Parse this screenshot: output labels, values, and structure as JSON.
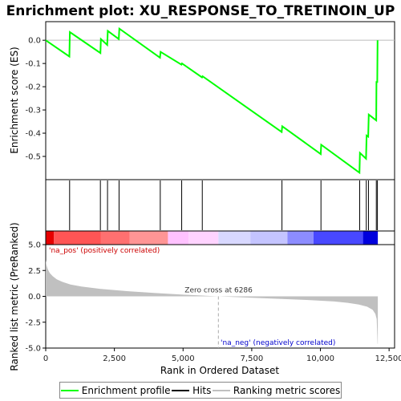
{
  "chart_data": {
    "type": "line",
    "title": "Enrichment plot: XU_RESPONSE_TO_TRETINOIN_UP",
    "es_panel": {
      "ylabel": "Enrichment score (ES)",
      "ylim": [
        -0.6,
        0.08
      ],
      "yticks": [
        0.0,
        -0.1,
        -0.2,
        -0.3,
        -0.4,
        -0.5
      ],
      "ytick_labels": [
        "0.0",
        "-0.1",
        "-0.2",
        "-0.3",
        "-0.4",
        "-0.5"
      ],
      "grid": false,
      "series": [
        {
          "name": "Enrichment profile",
          "color": "#00ff00",
          "x": [
            0,
            860,
            880,
            1990,
            2010,
            2240,
            2260,
            2660,
            2680,
            4160,
            4180,
            4940,
            4960,
            5690,
            5710,
            8590,
            8610,
            10010,
            10030,
            11420,
            11440,
            11660,
            11680,
            11740,
            11760,
            12030,
            12040,
            12070,
            12080
          ],
          "y": [
            0.0,
            -0.07,
            0.035,
            -0.055,
            0.005,
            -0.02,
            0.04,
            0.005,
            0.05,
            -0.075,
            -0.05,
            -0.105,
            -0.1,
            -0.16,
            -0.155,
            -0.395,
            -0.37,
            -0.49,
            -0.45,
            -0.57,
            -0.485,
            -0.51,
            -0.41,
            -0.415,
            -0.32,
            -0.345,
            -0.18,
            -0.18,
            0.0
          ]
        }
      ]
    },
    "hits": {
      "name": "Hits",
      "color": "#000000",
      "positions": [
        870,
        1990,
        2250,
        2670,
        4170,
        4950,
        5700,
        8600,
        10020,
        11430,
        11670,
        11750,
        12035,
        12075
      ]
    },
    "color_bar": {
      "positive_color": "#ff0000",
      "negative_color": "#0000ff",
      "boundaries": [
        0,
        300,
        2000,
        3050,
        4450,
        5200,
        6286,
        7450,
        8800,
        9750,
        11550,
        12090
      ],
      "colors": [
        "#e60000",
        "#ff5555",
        "#ff7070",
        "#ff9595",
        "#ffc2ff",
        "#ffd3ff",
        "#d8d8ff",
        "#c4c4ff",
        "#8c8cff",
        "#4848ff",
        "#0000dd"
      ]
    },
    "metric_panel": {
      "name": "Ranking metric scores",
      "color": "#c0c0c0",
      "ylabel": "Ranked list metric (PreRanked)",
      "ylim": [
        -5,
        5
      ],
      "yticks": [
        5.0,
        2.5,
        0.0,
        -2.5,
        -5.0
      ],
      "ytick_labels": [
        "5.0",
        "2.5",
        "0.0",
        "-2.5",
        "-5.0"
      ],
      "x": [
        0,
        30,
        80,
        150,
        250,
        400,
        600,
        900,
        1300,
        2000,
        3000,
        4000,
        5000,
        6286,
        7500,
        8500,
        9500,
        10500,
        11000,
        11400,
        11700,
        11900,
        12000,
        12050,
        12080,
        12090
      ],
      "y": [
        3.5,
        3.0,
        2.6,
        2.25,
        1.95,
        1.65,
        1.4,
        1.15,
        0.95,
        0.72,
        0.5,
        0.32,
        0.16,
        0.0,
        -0.13,
        -0.24,
        -0.35,
        -0.5,
        -0.63,
        -0.8,
        -1.0,
        -1.3,
        -1.7,
        -2.2,
        -4.6,
        -4.6
      ]
    },
    "xlabel": "Rank in Ordered Dataset",
    "xlim": [
      0,
      12700
    ],
    "xticks": [
      0,
      2500,
      5000,
      7500,
      10000,
      12500
    ],
    "xtick_labels": [
      "0",
      "2,500",
      "5,000",
      "7,500",
      "10,000",
      "12,500"
    ],
    "zero_cross": 6286,
    "annotations": {
      "na_pos": "'na_pos' (positively correlated)",
      "na_neg": "'na_neg' (negatively correlated)",
      "zero_cross": "Zero cross at 6286"
    },
    "legend": {
      "items": [
        {
          "label": "Enrichment profile",
          "color": "#00ff00"
        },
        {
          "label": "Hits",
          "color": "#000000"
        },
        {
          "label": "Ranking metric scores",
          "color": "#c0c0c0"
        }
      ]
    }
  }
}
